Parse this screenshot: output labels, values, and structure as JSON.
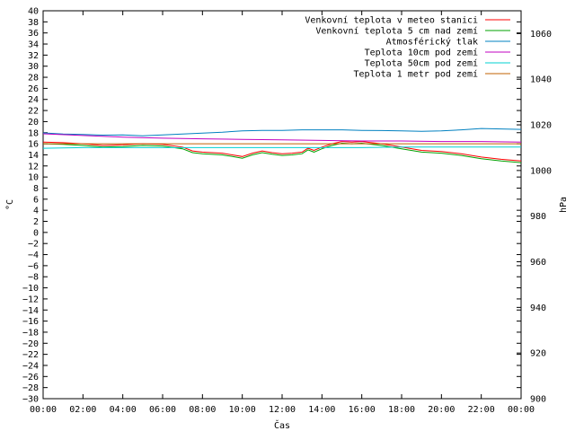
{
  "chart_data": {
    "type": "line",
    "xlabel": "Čas",
    "ylabel": "°C",
    "y2label": "hPa",
    "x_ticks": [
      "00:00",
      "02:00",
      "04:00",
      "06:00",
      "08:00",
      "10:00",
      "12:00",
      "14:00",
      "16:00",
      "18:00",
      "20:00",
      "22:00",
      "00:00"
    ],
    "xlim": [
      0,
      24
    ],
    "ylim": [
      -30,
      40
    ],
    "y_ticks": [
      -30,
      -28,
      -26,
      -24,
      -22,
      -20,
      -18,
      -16,
      -14,
      -12,
      -10,
      -8,
      -6,
      -4,
      -2,
      0,
      2,
      4,
      6,
      8,
      10,
      12,
      14,
      16,
      18,
      20,
      22,
      24,
      26,
      28,
      30,
      32,
      34,
      36,
      38,
      40
    ],
    "y2lim": [
      900,
      1070
    ],
    "y2_ticks": [
      900,
      920,
      940,
      960,
      980,
      1000,
      1020,
      1040,
      1060
    ],
    "grid": false,
    "legend_position": "top-right",
    "series": [
      {
        "name": "Venkovní teplota v meteo stanici",
        "color": "#ff0000",
        "axis": "y",
        "x": [
          0,
          1,
          2,
          3,
          4,
          5,
          6,
          7,
          7.5,
          8,
          9,
          9.5,
          10,
          10.5,
          11,
          11.5,
          12,
          12.5,
          13,
          13.3,
          13.6,
          14,
          14.5,
          15,
          15.5,
          16,
          17,
          18,
          19,
          20,
          21,
          22,
          23,
          24
        ],
        "y": [
          16.3,
          16.2,
          16.0,
          15.7,
          15.8,
          16.0,
          15.9,
          15.4,
          14.7,
          14.5,
          14.3,
          14.0,
          13.7,
          14.3,
          14.7,
          14.4,
          14.2,
          14.3,
          14.5,
          15.2,
          14.8,
          15.4,
          16.0,
          16.4,
          16.3,
          16.4,
          16.0,
          15.4,
          14.8,
          14.6,
          14.2,
          13.6,
          13.2,
          12.9
        ]
      },
      {
        "name": "Venkovní teplota 5 cm nad zemí",
        "color": "#00a000",
        "axis": "y",
        "x": [
          0,
          1,
          2,
          3,
          4,
          5,
          6,
          7,
          7.5,
          8,
          9,
          9.5,
          10,
          10.5,
          11,
          11.5,
          12,
          12.5,
          13,
          13.3,
          13.6,
          14,
          14.5,
          15,
          15.5,
          16,
          17,
          18,
          19,
          20,
          21,
          22,
          23,
          24
        ],
        "y": [
          16.0,
          15.9,
          15.7,
          15.4,
          15.5,
          15.7,
          15.6,
          15.1,
          14.4,
          14.2,
          14.0,
          13.7,
          13.4,
          14.0,
          14.4,
          14.1,
          13.9,
          14.0,
          14.2,
          14.9,
          14.5,
          15.1,
          15.7,
          16.1,
          16.0,
          16.1,
          15.7,
          15.1,
          14.5,
          14.3,
          13.9,
          13.3,
          12.9,
          12.6
        ]
      },
      {
        "name": "Atmosférický tlak",
        "color": "#0080c0",
        "axis": "y2",
        "x": [
          0,
          1,
          2,
          3,
          4,
          5,
          6,
          7,
          8,
          9,
          10,
          11,
          12,
          13,
          14,
          15,
          16,
          17,
          18,
          19,
          20,
          21,
          22,
          23,
          24
        ],
        "y": [
          1016.5,
          1016.0,
          1015.8,
          1015.5,
          1015.6,
          1015.2,
          1015.6,
          1016.0,
          1016.4,
          1016.8,
          1017.4,
          1017.6,
          1017.6,
          1017.8,
          1017.8,
          1017.8,
          1017.6,
          1017.5,
          1017.4,
          1017.2,
          1017.4,
          1017.8,
          1018.4,
          1018.2,
          1018.0
        ]
      },
      {
        "name": "Teplota 10cm pod zemí",
        "color": "#c000c0",
        "axis": "y",
        "x": [
          0,
          2,
          4,
          6,
          8,
          10,
          12,
          14,
          16,
          18,
          20,
          22,
          24
        ],
        "y": [
          17.8,
          17.5,
          17.2,
          17.0,
          16.9,
          16.8,
          16.7,
          16.6,
          16.5,
          16.5,
          16.4,
          16.4,
          16.3
        ]
      },
      {
        "name": "Teplota 50cm pod zemí",
        "color": "#00d0d0",
        "axis": "y",
        "x": [
          0,
          2,
          4,
          6,
          8,
          10,
          12,
          14,
          16,
          18,
          20,
          22,
          24
        ],
        "y": [
          15.2,
          15.3,
          15.3,
          15.3,
          15.3,
          15.3,
          15.3,
          15.3,
          15.3,
          15.4,
          15.4,
          15.4,
          15.4
        ]
      },
      {
        "name": "Teplota 1 metr pod zemí",
        "color": "#c06000",
        "axis": "y",
        "x": [
          0,
          2,
          4,
          6,
          8,
          10,
          12,
          14,
          16,
          18,
          20,
          22,
          24
        ],
        "y": [
          16.0,
          16.0,
          16.0,
          16.0,
          16.0,
          16.0,
          16.0,
          16.0,
          16.0,
          16.0,
          16.0,
          16.0,
          16.0
        ]
      }
    ]
  }
}
